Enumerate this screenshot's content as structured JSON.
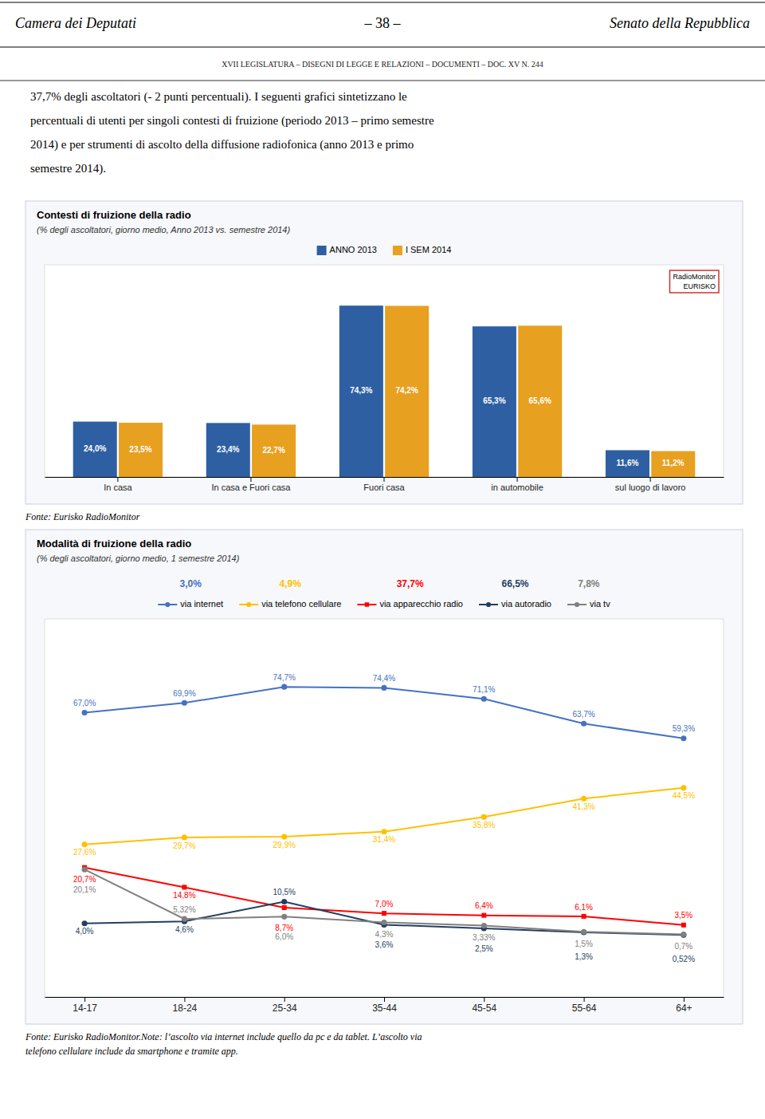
{
  "page": {
    "header_left": "Camera dei Deputati",
    "header_center": "–  38  –",
    "header_right": "Senato della Repubblica",
    "subheader": "XVII LEGISLATURA  –  DISEGNI DI LEGGE E RELAZIONI  –  DOCUMENTI  –  DOC. XV N. 244",
    "body": [
      "37,7% degli ascoltatori (- 2 punti percentuali). I seguenti grafici sintetizzano le",
      "percentuali di utenti per singoli contesti di fruizione (periodo 2013 – primo semestre",
      "2014) e per strumenti di ascolto della diffusione radiofonica (anno 2013 e primo",
      "semestre 2014)."
    ]
  },
  "chart_data": [
    {
      "type": "bar",
      "title": "Contesti di fruizione della radio",
      "subtitle": "(% degli ascoltatori, giorno medio,  Anno 2013 vs. semestre 2014)",
      "categories": [
        "In casa",
        "In casa e Fuori casa",
        "Fuori casa",
        "in automobile",
        "sul luogo di lavoro"
      ],
      "series": [
        {
          "name": "ANNO 2013",
          "color": "#2E5FA3",
          "values": [
            24.0,
            23.4,
            74.3,
            65.3,
            11.6
          ],
          "value_labels": [
            "24,0%",
            "23,4%",
            "74,3%",
            "65,3%",
            "11,6%"
          ]
        },
        {
          "name": "I SEM 2014",
          "color": "#E8A020",
          "values": [
            23.5,
            22.7,
            74.2,
            65.6,
            11.2
          ],
          "value_labels": [
            "23,5%",
            "22,7%",
            "74,2%",
            "65,6%",
            "11,2%"
          ]
        }
      ],
      "ylim": [
        0,
        92
      ],
      "tick_labels": "x",
      "data_labels": true,
      "legend": "top",
      "annotations": [
        "RadioMonitor",
        "EURISKO"
      ],
      "source": "Fonte: Eurisko RadioMonitor"
    },
    {
      "type": "line",
      "title": "Modalità di fruizione della radio",
      "subtitle": "(% degli ascoltatori, giorno medio, 1 semestre 2014)",
      "categories": [
        "14-17",
        "18-24",
        "25-34",
        "35-44",
        "45-54",
        "55-64",
        "64+"
      ],
      "series": [
        {
          "name": "via internet",
          "color": "#4472C4",
          "marker": "circle",
          "values": [
            67.0,
            69.9,
            74.7,
            74.4,
            71.1,
            63.7,
            59.3
          ],
          "value_labels": [
            "67,0%",
            "69,9%",
            "74,7%",
            "74,4%",
            "71,1%",
            "63,7%",
            "59,3%"
          ]
        },
        {
          "name": "via telefono cellulare",
          "color": "#FFC000",
          "marker": "circle",
          "values": [
            27.6,
            29.7,
            29.9,
            31.4,
            35.8,
            41.3,
            44.5
          ],
          "value_labels": [
            "27,6%",
            "29,7%",
            "29,9%",
            "31,4%",
            "35,8%",
            "41,3%",
            "44,5%"
          ]
        },
        {
          "name": "via apparecchio radio",
          "color": "#FF0000",
          "marker": "square",
          "values": [
            20.7,
            14.8,
            8.7,
            7.0,
            6.4,
            6.1,
            3.5
          ],
          "value_labels": [
            "20,7%",
            "14,8%",
            "8,7%",
            "7,0%",
            "6,4%",
            "6,1%",
            "3,5%"
          ]
        },
        {
          "name": "via autoradio",
          "color": "#243F60",
          "marker": "circle",
          "values": [
            4.0,
            4.6,
            10.5,
            3.6,
            2.5,
            1.3,
            0.52
          ],
          "value_labels": [
            "4,0%",
            "4,6%",
            "10,5%",
            "3,6%",
            "2,5%",
            "1,3%",
            "0,52%"
          ]
        },
        {
          "name": "via tv",
          "color": "#808080",
          "marker": "circle",
          "values": [
            20.1,
            5.32,
            6.0,
            4.3,
            3.33,
            1.5,
            0.7
          ],
          "value_labels": [
            "20,1%",
            "5,32%",
            "6,0%",
            "4,3%",
            "3,33%",
            "1,5%",
            "0,7%"
          ]
        }
      ],
      "ylim": [
        -18,
        95
      ],
      "tick_labels": "x",
      "data_labels": true,
      "legend": "top",
      "annotations": [
        "3,0%",
        "4,9%",
        "37,7%",
        "66,5%",
        "7,8%"
      ],
      "source": [
        "Fonte: Eurisko RadioMonitor.Note: l’ascolto via internet include quello da pc e da tablet. L’ascolto via",
        "telefono cellulare include da smartphone e tramite app."
      ]
    }
  ]
}
